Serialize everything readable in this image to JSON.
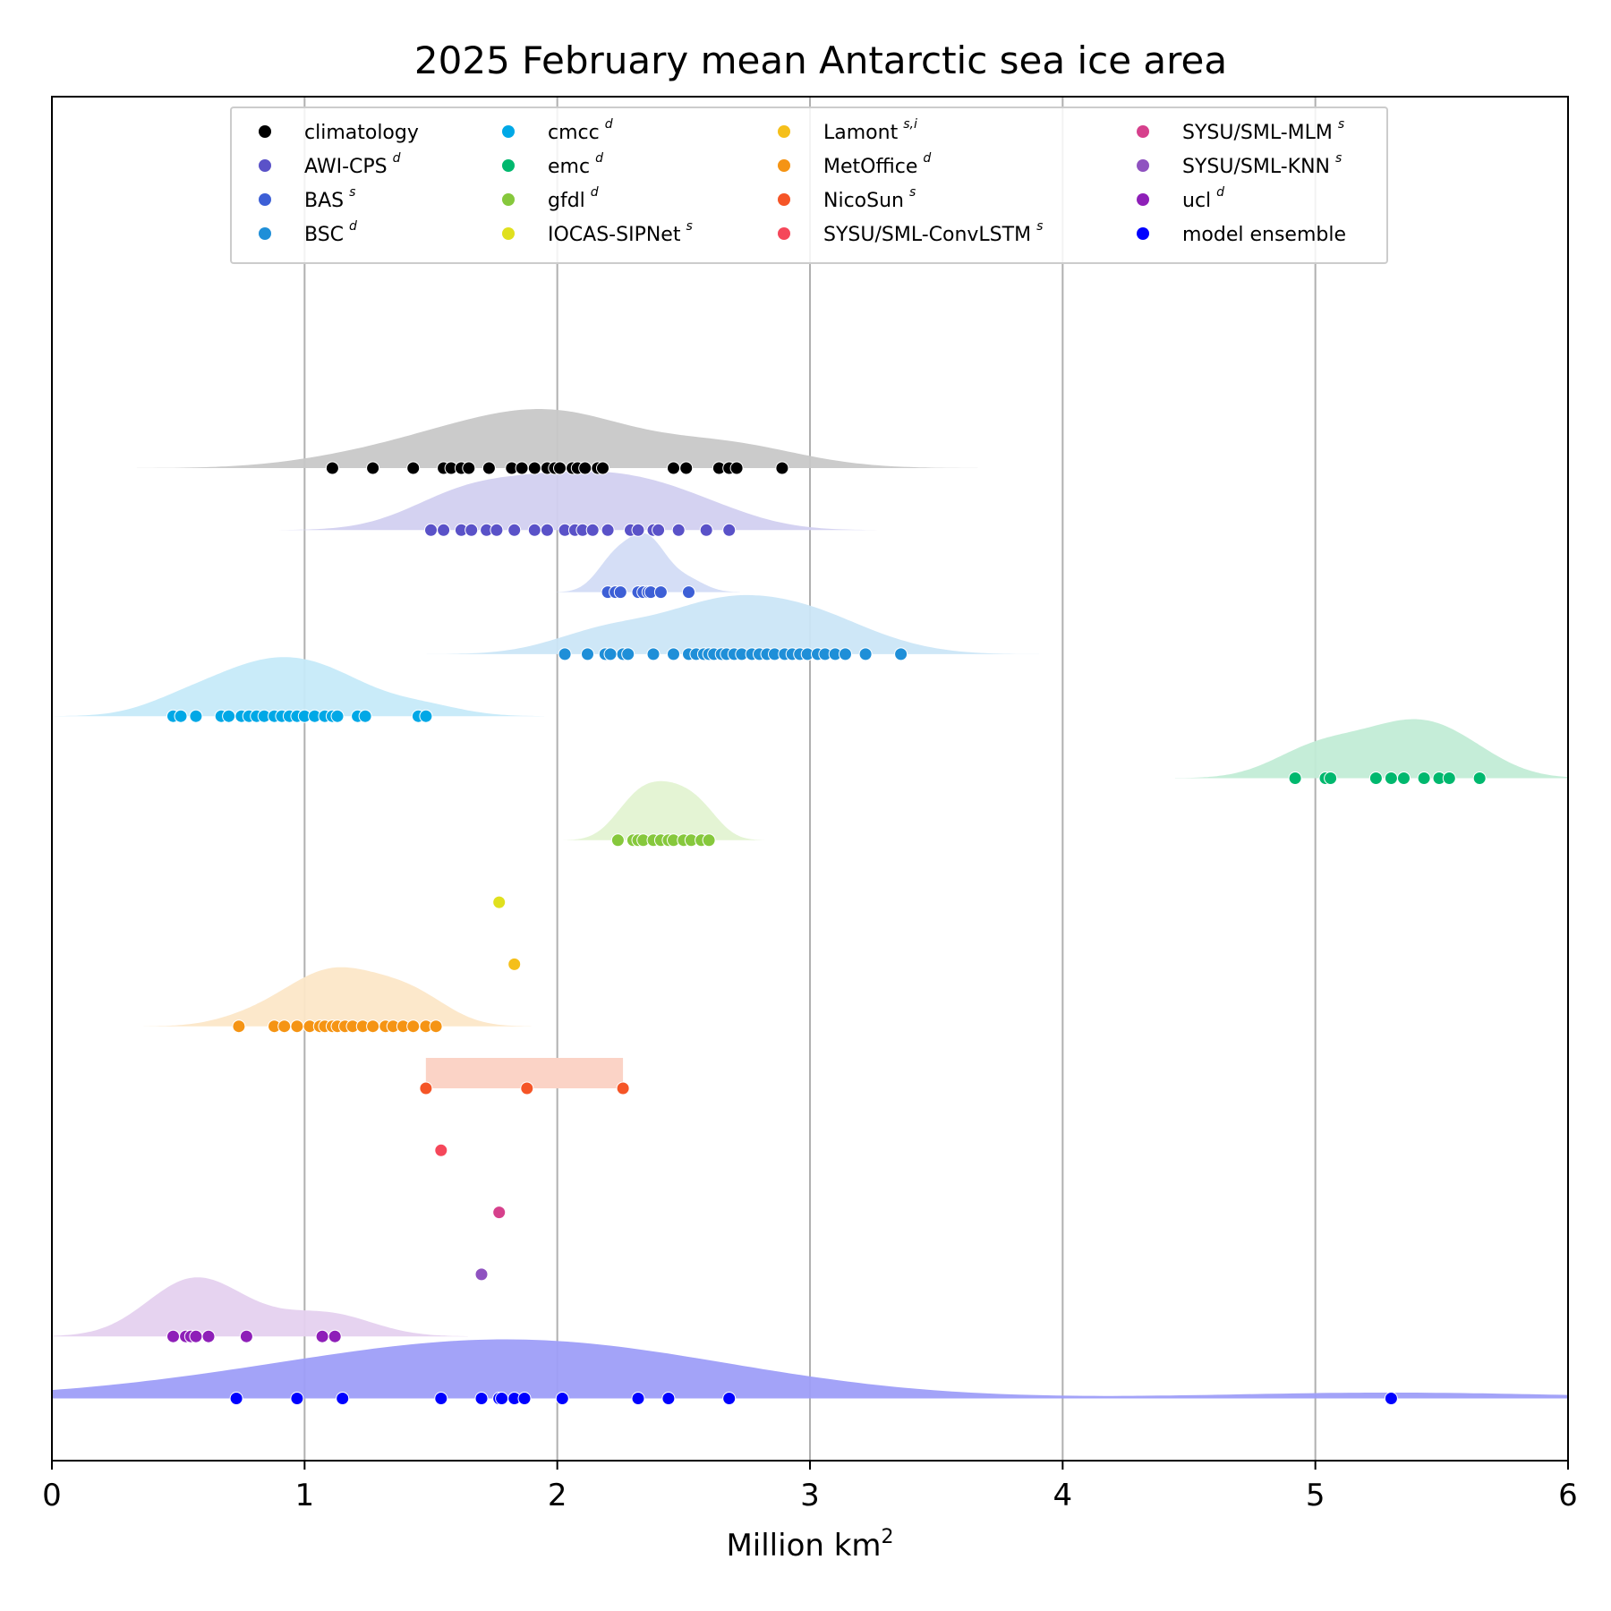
{
  "chart_data": {
    "type": "scatter",
    "title": "2025 February mean Antarctic sea ice area",
    "xlabel": "Million km",
    "xlabel_sup": "2",
    "xlim": [
      0,
      6
    ],
    "xticks": [
      "0",
      "1",
      "2",
      "3",
      "4",
      "5",
      "6"
    ],
    "grid": "vertical",
    "legend_position": "top",
    "series": [
      {
        "name": "climatology",
        "sup": "",
        "color": "#000000",
        "fill": "#c8c8c8",
        "kde": true,
        "values": [
          1.11,
          1.27,
          1.43,
          1.55,
          1.58,
          1.62,
          1.65,
          1.73,
          1.82,
          1.86,
          1.91,
          1.96,
          1.99,
          2.01,
          2.06,
          2.08,
          2.11,
          2.16,
          2.18,
          2.46,
          2.51,
          2.64,
          2.68,
          2.71,
          2.89
        ]
      },
      {
        "name": "AWI-CPS",
        "sup": "d",
        "color": "#5a52c8",
        "fill": "#d2d0f0",
        "kde": true,
        "values": [
          1.5,
          1.55,
          1.62,
          1.66,
          1.72,
          1.76,
          1.83,
          1.91,
          1.96,
          2.03,
          2.07,
          2.1,
          2.14,
          2.2,
          2.29,
          2.32,
          2.38,
          2.4,
          2.48,
          2.59,
          2.68
        ]
      },
      {
        "name": "BAS",
        "sup": "s",
        "color": "#3d5fd6",
        "fill": "#d3dcf5",
        "kde": true,
        "values": [
          2.2,
          2.23,
          2.25,
          2.32,
          2.34,
          2.36,
          2.37,
          2.41,
          2.52
        ]
      },
      {
        "name": "BSC",
        "sup": "d",
        "color": "#1f8fd8",
        "fill": "#cbe6f7",
        "kde": true,
        "values": [
          2.03,
          2.12,
          2.19,
          2.21,
          2.26,
          2.28,
          2.38,
          2.46,
          2.52,
          2.55,
          2.58,
          2.6,
          2.62,
          2.65,
          2.67,
          2.7,
          2.73,
          2.77,
          2.8,
          2.83,
          2.86,
          2.9,
          2.93,
          2.96,
          2.99,
          3.03,
          3.06,
          3.1,
          3.14,
          3.22,
          3.36
        ]
      },
      {
        "name": "cmcc",
        "sup": "d",
        "color": "#00a8e6",
        "fill": "#c6eaf9",
        "kde": true,
        "values": [
          0.48,
          0.51,
          0.57,
          0.67,
          0.7,
          0.75,
          0.78,
          0.81,
          0.84,
          0.88,
          0.91,
          0.94,
          0.97,
          1.0,
          1.04,
          1.08,
          1.11,
          1.13,
          1.21,
          1.24,
          1.45,
          1.48
        ]
      },
      {
        "name": "emc",
        "sup": "d",
        "color": "#00b86e",
        "fill": "#c2ecd6",
        "kde": true,
        "values": [
          4.92,
          5.04,
          5.06,
          5.24,
          5.3,
          5.35,
          5.43,
          5.49,
          5.53,
          5.65
        ]
      },
      {
        "name": "gfdl",
        "sup": "d",
        "color": "#86c83c",
        "fill": "#e3f3d2",
        "kde": true,
        "values": [
          2.24,
          2.3,
          2.32,
          2.34,
          2.38,
          2.41,
          2.44,
          2.46,
          2.5,
          2.53,
          2.57,
          2.6
        ]
      },
      {
        "name": "IOCAS-SIPNet",
        "sup": "s",
        "color": "#e0e01e",
        "fill": "#f7f7c6",
        "kde": false,
        "values": [
          1.77
        ]
      },
      {
        "name": "Lamont",
        "sup": "s,i",
        "color": "#f5bf1a",
        "fill": "#fbeec6",
        "kde": false,
        "values": [
          1.83
        ]
      },
      {
        "name": "MetOffice",
        "sup": "d",
        "color": "#f59414",
        "fill": "#fce7c8",
        "kde": true,
        "values": [
          0.74,
          0.88,
          0.92,
          0.97,
          1.02,
          1.06,
          1.08,
          1.11,
          1.13,
          1.16,
          1.19,
          1.23,
          1.27,
          1.32,
          1.35,
          1.39,
          1.43,
          1.48,
          1.52
        ]
      },
      {
        "name": "NicoSun",
        "sup": "s",
        "color": "#f55527",
        "fill": "#fbd3c6",
        "kde": false,
        "values": [
          1.48,
          1.88,
          2.26
        ]
      },
      {
        "name": "SYSU/SML-ConvLSTM",
        "sup": "s",
        "color": "#f5475a",
        "fill": "#fbd0d6",
        "kde": false,
        "values": [
          1.54
        ]
      },
      {
        "name": "SYSU/SML-MLM",
        "sup": "s",
        "color": "#d6408c",
        "fill": "#f3cfe1",
        "kde": false,
        "values": [
          1.77
        ]
      },
      {
        "name": "SYSU/SML-KNN",
        "sup": "s",
        "color": "#8f52c0",
        "fill": "#e2d3ef",
        "kde": false,
        "values": [
          1.7
        ]
      },
      {
        "name": "ucl",
        "sup": "d",
        "color": "#8e1fb8",
        "fill": "#e5d1ef",
        "kde": true,
        "values": [
          0.48,
          0.53,
          0.55,
          0.57,
          0.62,
          0.77,
          1.07,
          1.12
        ]
      },
      {
        "name": "model ensemble",
        "sup": "",
        "color": "#0000ff",
        "fill": "#9e9ef8",
        "kde": true,
        "values": [
          0.73,
          0.97,
          1.15,
          1.54,
          1.7,
          1.77,
          1.78,
          1.83,
          1.87,
          2.02,
          2.32,
          2.44,
          2.68,
          5.3
        ]
      }
    ]
  }
}
